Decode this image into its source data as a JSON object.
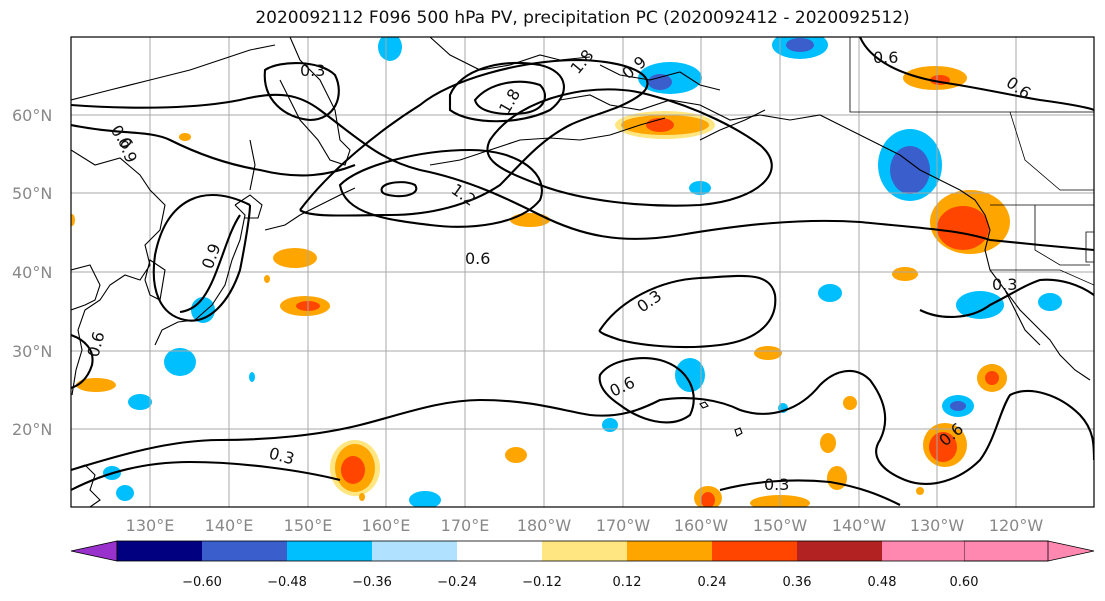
{
  "title": "2020092112 F096 500 hPa PV, precipitation PC (2020092412 - 2020092512)",
  "lat_labels": [
    "60°N",
    "50°N",
    "40°N",
    "30°N",
    "20°N"
  ],
  "lon_labels": [
    "130°E",
    "140°E",
    "150°E",
    "160°E",
    "170°E",
    "180°W",
    "170°W",
    "160°W",
    "150°W",
    "140°W",
    "130°W",
    "120°W"
  ],
  "contour_labels": [
    "0.3",
    "0.6",
    "0.9",
    "1.2",
    "1.8",
    "0.6",
    "0.3",
    "0.6",
    "0.3",
    "0.6",
    "0.3",
    "0.6",
    "0.9",
    "0.6",
    "0.3",
    "0.6",
    "1.8",
    "0.9"
  ],
  "colorbar": {
    "ticks": [
      "−0.60",
      "−0.48",
      "−0.36",
      "−0.24",
      "−0.12",
      "0.12",
      "0.24",
      "0.36",
      "0.48",
      "0.60"
    ],
    "colors": [
      "#9932cc",
      "#000080",
      "#3a5fcd",
      "#00bfff",
      "#b0e2ff",
      "#ffffff",
      "#ffe680",
      "#ffa500",
      "#ff4500",
      "#b22222",
      "#ff88b0"
    ]
  }
}
